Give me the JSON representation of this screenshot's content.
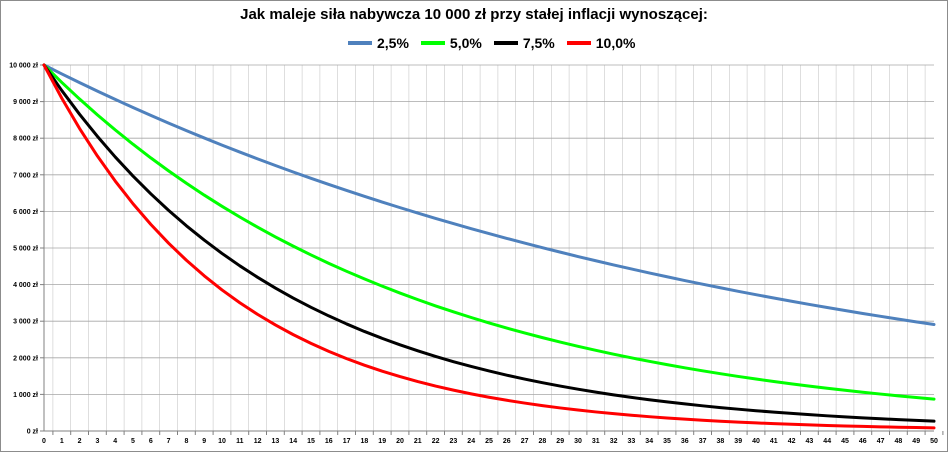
{
  "chart_data": {
    "type": "line",
    "title": "Jak maleje siła nabywcza 10 000 zł przy stałej inflacji wynoszącej:",
    "xlabel": "",
    "ylabel": "",
    "x": [
      0,
      1,
      2,
      3,
      4,
      5,
      6,
      7,
      8,
      9,
      10,
      11,
      12,
      13,
      14,
      15,
      16,
      17,
      18,
      19,
      20,
      21,
      22,
      23,
      24,
      25,
      26,
      27,
      28,
      29,
      30,
      31,
      32,
      33,
      34,
      35,
      36,
      37,
      38,
      39,
      40,
      41,
      42,
      43,
      44,
      45,
      46,
      47,
      48,
      49,
      50
    ],
    "ylim": [
      0,
      10000
    ],
    "y_ticks": [
      0,
      1000,
      2000,
      3000,
      4000,
      5000,
      6000,
      7000,
      8000,
      9000,
      10000
    ],
    "y_tick_labels": [
      "0 zł",
      "1 000 zł",
      "2 000 zł",
      "3 000 zł",
      "4 000 zł",
      "5 000 zł",
      "6 000 zł",
      "7 000 zł",
      "8 000 zł",
      "9 000 zł",
      "10 000 zł"
    ],
    "grid": true,
    "legend_position": "top-center",
    "series": [
      {
        "name": "2,5%",
        "color": "#4f81bd",
        "values": [
          10000,
          9756,
          9518,
          9286,
          9060,
          8839,
          8623,
          8413,
          8207,
          8007,
          7812,
          7621,
          7436,
          7254,
          7077,
          6905,
          6736,
          6572,
          6412,
          6255,
          6103,
          5954,
          5809,
          5667,
          5529,
          5394,
          5262,
          5134,
          5009,
          4887,
          4767,
          4651,
          4538,
          4427,
          4319,
          4214,
          4111,
          4011,
          3913,
          3817,
          3724,
          3633,
          3545,
          3458,
          3374,
          3292,
          3211,
          3133,
          3057,
          2982,
          2909
        ]
      },
      {
        "name": "5,0%",
        "color": "#00ff00",
        "values": [
          10000,
          9524,
          9070,
          8638,
          8227,
          7835,
          7462,
          7107,
          6768,
          6446,
          6139,
          5847,
          5568,
          5303,
          5051,
          4810,
          4581,
          4363,
          4155,
          3957,
          3769,
          3589,
          3418,
          3256,
          3101,
          2953,
          2812,
          2678,
          2551,
          2429,
          2314,
          2204,
          2099,
          1999,
          1904,
          1813,
          1727,
          1644,
          1566,
          1491,
          1420,
          1353,
          1288,
          1227,
          1169,
          1113,
          1060,
          1009,
          961,
          916,
          872
        ]
      },
      {
        "name": "7,5%",
        "color": "#000000",
        "values": [
          10000,
          9302,
          8653,
          8050,
          7488,
          6966,
          6480,
          6028,
          5607,
          5216,
          4852,
          4513,
          4199,
          3906,
          3633,
          3380,
          3144,
          2925,
          2720,
          2531,
          2354,
          2190,
          2037,
          1895,
          1763,
          1640,
          1525,
          1419,
          1320,
          1228,
          1142,
          1062,
          988,
          919,
          855,
          796,
          740,
          688,
          640,
          596,
          554,
          516,
          480,
          446,
          415,
          386,
          359,
          334,
          311,
          289,
          269
        ]
      },
      {
        "name": "10,0%",
        "color": "#ff0000",
        "values": [
          10000,
          9091,
          8264,
          7513,
          6830,
          6209,
          5645,
          5132,
          4665,
          4241,
          3855,
          3505,
          3186,
          2897,
          2633,
          2394,
          2176,
          1978,
          1799,
          1635,
          1486,
          1351,
          1228,
          1117,
          1015,
          923,
          839,
          763,
          693,
          630,
          573,
          521,
          474,
          431,
          391,
          356,
          323,
          294,
          267,
          243,
          221,
          201,
          183,
          166,
          151,
          137,
          125,
          113,
          103,
          94,
          85
        ]
      }
    ]
  }
}
